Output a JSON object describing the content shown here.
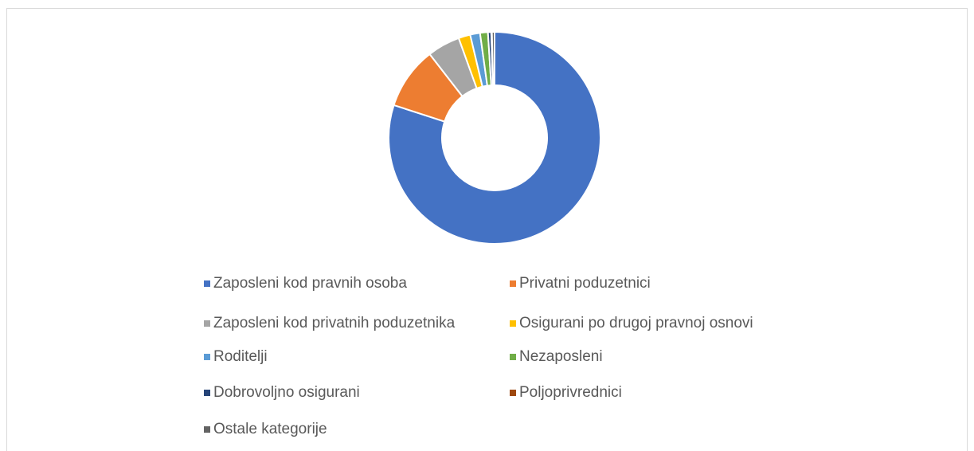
{
  "chart_data": {
    "type": "donut",
    "categories": [
      "Zaposleni kod pravnih osoba",
      "Privatni poduzetnici",
      "Zaposleni kod privatnih poduzetnika",
      "Osigurani po drugoj pravnoj osnovi",
      "Roditelji",
      "Nezaposleni",
      "Dobrovoljno osigurani",
      "Poljoprivrednici",
      "Ostale kategorije"
    ],
    "values": [
      80,
      9.5,
      5,
      1.8,
      1.5,
      1.2,
      0.5,
      0.1,
      0.4
    ],
    "colors": [
      "#4472c4",
      "#ed7d31",
      "#a5a5a5",
      "#ffc000",
      "#5b9bd5",
      "#70ad47",
      "#264478",
      "#9e480e",
      "#636363"
    ],
    "legend": "bottom"
  }
}
